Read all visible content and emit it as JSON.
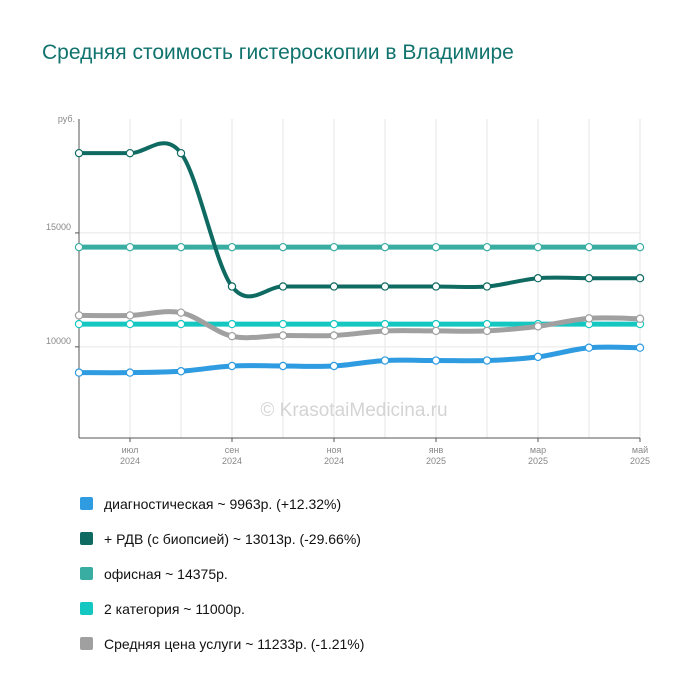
{
  "chart_data": {
    "type": "line",
    "title": "Средняя стоимость гистероскопии в Владимире",
    "ylabel": "руб.",
    "ylim": [
      6000,
      20000
    ],
    "yticks": [
      {
        "value": 10000,
        "label": "10000"
      },
      {
        "value": 15000,
        "label": "15000"
      }
    ],
    "x": [
      "2024-06",
      "2024-07",
      "2024-08",
      "2024-09",
      "2024-10",
      "2024-11",
      "2024-12",
      "2025-01",
      "2025-02",
      "2025-03",
      "2025-04",
      "2025-05"
    ],
    "xticks": [
      {
        "month": "июл",
        "year": "2024",
        "index": 1
      },
      {
        "month": "сен",
        "year": "2024",
        "index": 3
      },
      {
        "month": "ноя",
        "year": "2024",
        "index": 5
      },
      {
        "month": "янв",
        "year": "2025",
        "index": 7
      },
      {
        "month": "мар",
        "year": "2025",
        "index": 9
      },
      {
        "month": "май",
        "year": "2025",
        "index": 11
      }
    ],
    "grid": true,
    "legend_position": "bottom",
    "watermark": "© KrasotaiMedicina.ru",
    "series": [
      {
        "name": "офисная",
        "color": "#3aada3",
        "width": 5,
        "values": [
          14375,
          14375,
          14375,
          14375,
          14375,
          14375,
          14375,
          14375,
          14375,
          14375,
          14375,
          14375
        ]
      },
      {
        "name": "2 категория",
        "color": "#14c7c0",
        "width": 5,
        "values": [
          11000,
          11000,
          11000,
          11000,
          11000,
          11000,
          11000,
          11000,
          11000,
          11000,
          11000,
          11000
        ]
      },
      {
        "name": "Средняя цена услуги",
        "color": "#a0a0a0",
        "width": 5,
        "values": [
          11380,
          11380,
          11500,
          10470,
          10500,
          10500,
          10700,
          10700,
          10700,
          10900,
          11250,
          11233
        ]
      },
      {
        "name": "диагностическая",
        "color": "#2f9be0",
        "width": 5,
        "values": [
          8870,
          8870,
          8930,
          9160,
          9160,
          9160,
          9400,
          9400,
          9400,
          9560,
          9963,
          9963
        ]
      },
      {
        "name": "+ РДВ (с биопсией)",
        "color": "#0f6b62",
        "width": 4,
        "values": [
          18500,
          18500,
          18500,
          12650,
          12650,
          12650,
          12650,
          12650,
          12650,
          13013,
          13013,
          13013
        ]
      }
    ]
  },
  "legend": [
    {
      "color": "#2f9be0",
      "label": "диагностическая ~ 9963р. (+12.32%)"
    },
    {
      "color": "#0f6b62",
      "label": "+ РДВ (с биопсией) ~ 13013р. (-29.66%)"
    },
    {
      "color": "#3aada3",
      "label": "офисная ~ 14375р."
    },
    {
      "color": "#14c7c0",
      "label": "2 категория ~ 11000р."
    },
    {
      "color": "#a0a0a0",
      "label": "Средняя цена услуги ~ 11233р. (-1.21%)"
    }
  ]
}
